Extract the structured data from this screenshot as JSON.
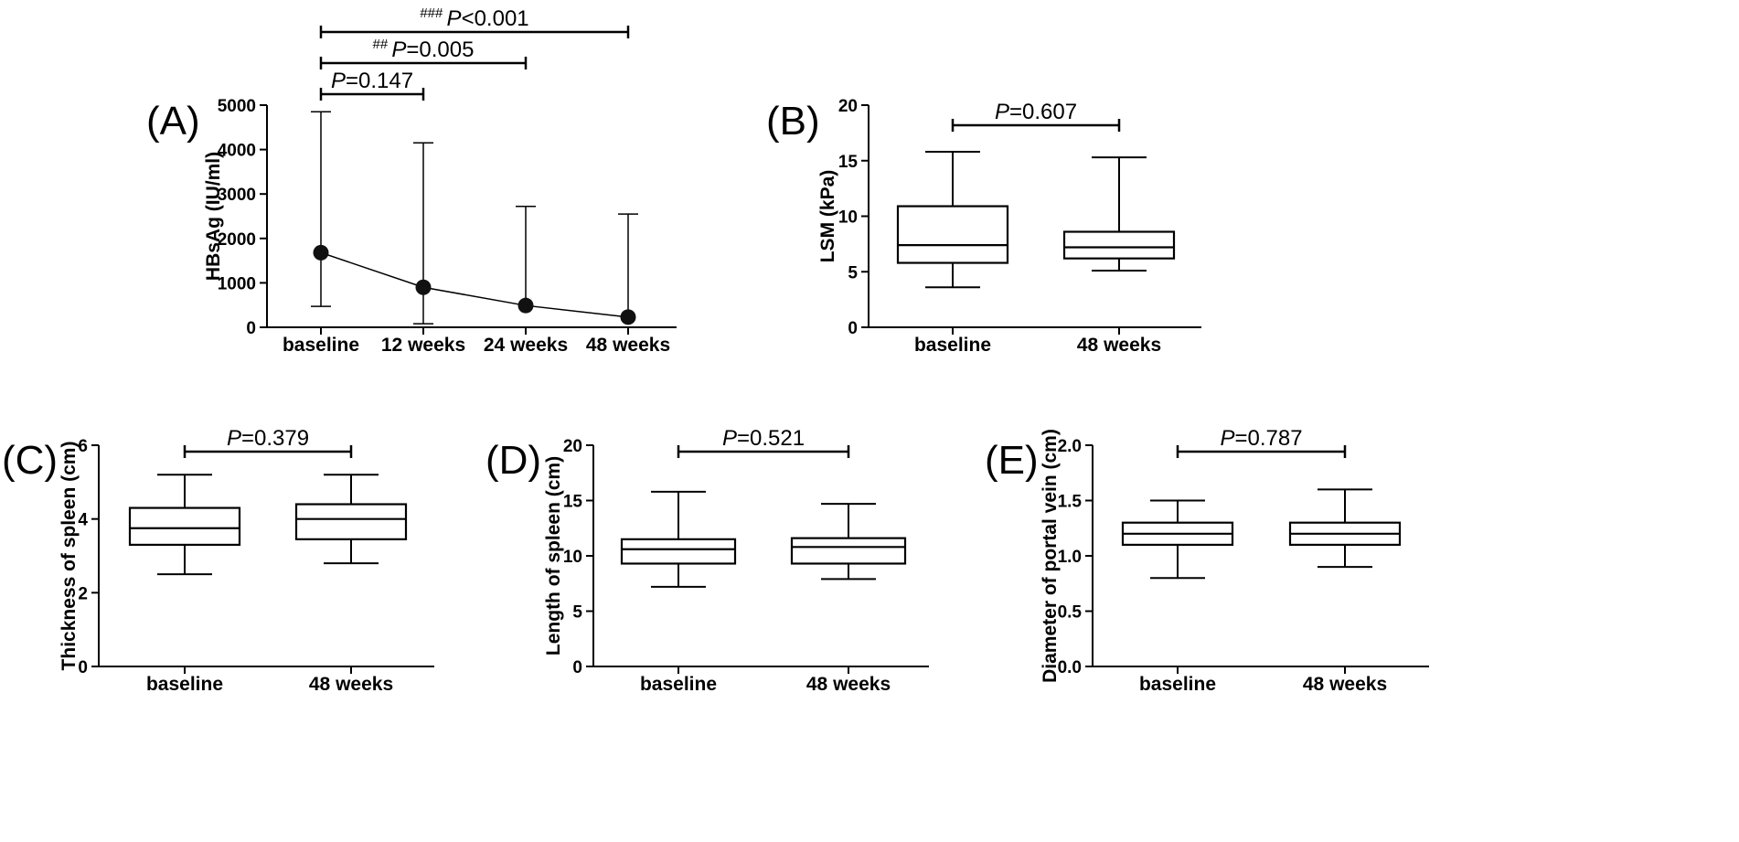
{
  "chart_data": [
    {
      "panel": "(A)",
      "type": "line",
      "ylabel": "HBsAg (IU/ml)",
      "ylim": [
        0,
        5000
      ],
      "yticks": [
        "0",
        "1000",
        "2000",
        "3000",
        "4000",
        "5000"
      ],
      "categories": [
        "baseline",
        "12 weeks",
        "24 weeks",
        "48 weeks"
      ],
      "values": [
        1680,
        900,
        490,
        230
      ],
      "err_low": [
        470,
        80,
        null,
        null
      ],
      "err_high": [
        4850,
        4150,
        2720,
        2550
      ],
      "comparisons": [
        {
          "marker": "",
          "italic": "P",
          "text": "=0.147",
          "from": 0,
          "to": 1
        },
        {
          "marker": "##",
          "italic": "P",
          "text": "=0.005",
          "from": 0,
          "to": 2
        },
        {
          "marker": "###",
          "italic": "P",
          "text": "<0.001",
          "from": 0,
          "to": 3
        }
      ]
    },
    {
      "panel": "(B)",
      "type": "box",
      "ylabel": "LSM (kPa)",
      "ylim": [
        0,
        20
      ],
      "yticks": [
        "0",
        "5",
        "10",
        "15",
        "20"
      ],
      "categories": [
        "baseline",
        "48 weeks"
      ],
      "boxes": [
        {
          "min": 3.6,
          "q1": 5.8,
          "median": 7.4,
          "q3": 10.9,
          "max": 15.8
        },
        {
          "min": 5.1,
          "q1": 6.2,
          "median": 7.2,
          "q3": 8.6,
          "max": 15.3
        }
      ],
      "comparison": {
        "italic": "P",
        "text": "=0.607"
      }
    },
    {
      "panel": "(C)",
      "type": "box",
      "ylabel": "Thickness of spleen (cm)",
      "ylim": [
        0,
        6
      ],
      "yticks": [
        "0",
        "2",
        "4",
        "6"
      ],
      "categories": [
        "baseline",
        "48 weeks"
      ],
      "boxes": [
        {
          "min": 2.5,
          "q1": 3.3,
          "median": 3.75,
          "q3": 4.3,
          "max": 5.2
        },
        {
          "min": 2.8,
          "q1": 3.45,
          "median": 4.0,
          "q3": 4.4,
          "max": 5.2
        }
      ],
      "comparison": {
        "italic": "P",
        "text": "=0.379"
      }
    },
    {
      "panel": "(D)",
      "type": "box",
      "ylabel": "Length of spleen (cm)",
      "ylim": [
        0,
        20
      ],
      "yticks": [
        "0",
        "5",
        "10",
        "15",
        "20"
      ],
      "categories": [
        "baseline",
        "48 weeks"
      ],
      "boxes": [
        {
          "min": 7.2,
          "q1": 9.3,
          "median": 10.6,
          "q3": 11.5,
          "max": 15.8
        },
        {
          "min": 7.9,
          "q1": 9.3,
          "median": 10.8,
          "q3": 11.6,
          "max": 14.7
        }
      ],
      "comparison": {
        "italic": "P",
        "text": "=0.521"
      }
    },
    {
      "panel": "(E)",
      "type": "box",
      "ylabel": "Diameter of portal vein (cm)",
      "ylim": [
        0,
        2
      ],
      "yticks": [
        "0.0",
        "0.5",
        "1.0",
        "1.5",
        "2.0"
      ],
      "categories": [
        "baseline",
        "48 weeks"
      ],
      "boxes": [
        {
          "min": 0.8,
          "q1": 1.1,
          "median": 1.2,
          "q3": 1.3,
          "max": 1.5
        },
        {
          "min": 0.9,
          "q1": 1.1,
          "median": 1.2,
          "q3": 1.3,
          "max": 1.6
        }
      ],
      "comparison": {
        "italic": "P",
        "text": "=0.787"
      }
    }
  ]
}
